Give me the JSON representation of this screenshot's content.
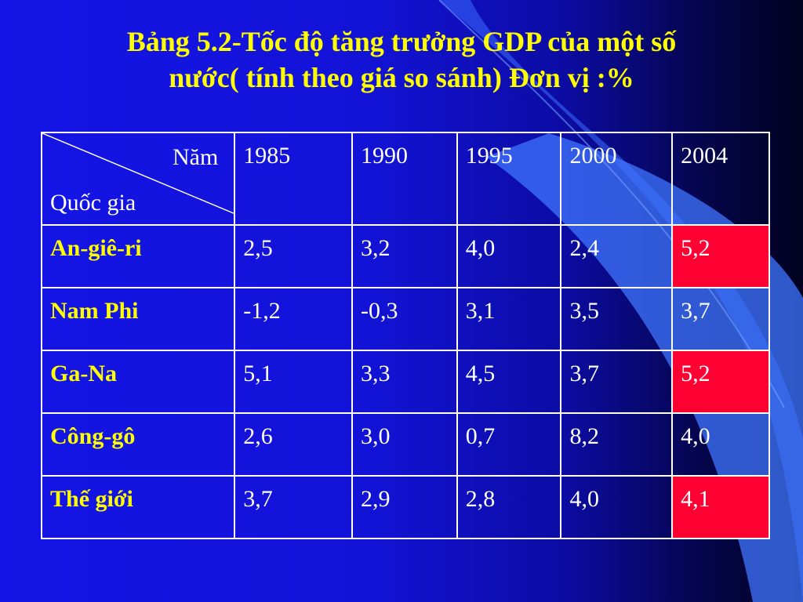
{
  "slide": {
    "title_line1": "Bảng 5.2-Tốc độ tăng trưởng GDP của một số",
    "title_line2": "nước( tính theo giá so sánh)  Đơn vị :%"
  },
  "table": {
    "corner_top": "Năm",
    "corner_bottom": "Quốc gia",
    "years": [
      "1985",
      "1990",
      "1995",
      "2000",
      "2004"
    ],
    "rows": [
      {
        "country": "An-giê-ri",
        "values": [
          "2,5",
          "3,2",
          "4,0",
          "2,4",
          "5,2"
        ]
      },
      {
        "country": "Nam Phi",
        "values": [
          "-1,2",
          "-0,3",
          "3,1",
          "3,5",
          "3,7"
        ]
      },
      {
        "country": "Ga-Na",
        "values": [
          "5,1",
          "3,3",
          "4,5",
          "3,7",
          "5,2"
        ]
      },
      {
        "country": "Công-gô",
        "values": [
          "2,6",
          "3,0",
          "0,7",
          "8,2",
          "4,0"
        ]
      },
      {
        "country": "Thế giới",
        "values": [
          "3,7",
          "2,9",
          "2,8",
          "4,0",
          "4,1"
        ]
      }
    ]
  },
  "colors": {
    "background": "#1414e6",
    "title": "#ffff00",
    "country_label": "#ffff00",
    "cell_text": "#ffffff",
    "highlight": "#ff0033"
  }
}
